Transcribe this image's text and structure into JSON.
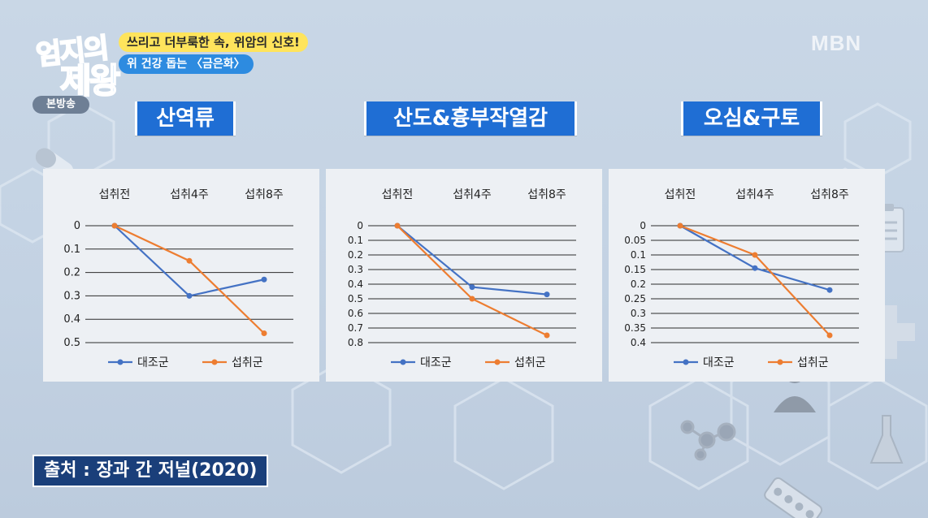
{
  "header": {
    "logo_line1": "엄지의",
    "logo_line2": "제왕",
    "live_badge": "본방송",
    "caption_top": "쓰리고 더부룩한 속, 위암의 신호!",
    "caption_bottom": "위 건강 돕는 〈금은화〉",
    "channel": "MBN"
  },
  "source": "출처 : 장과 간 저널(2020)",
  "colors": {
    "control": "#4472c4",
    "intake": "#ed7d31",
    "title_bg": "#1f6ed4"
  },
  "legend": {
    "control": "대조군",
    "intake": "섭취군"
  },
  "chart_data": [
    {
      "type": "line",
      "title": "산역류",
      "categories": [
        "섭취전",
        "섭취4주",
        "섭취8주"
      ],
      "y_inverted": true,
      "ylim": [
        0,
        0.5
      ],
      "yticks": [
        "0",
        "0.1",
        "0.2",
        "0.3",
        "0.4",
        "0.5"
      ],
      "series": [
        {
          "name": "대조군",
          "values": [
            0,
            0.3,
            0.23
          ]
        },
        {
          "name": "섭취군",
          "values": [
            0,
            0.15,
            0.46
          ]
        }
      ]
    },
    {
      "type": "line",
      "title": "산도&흉부작열감",
      "categories": [
        "섭취전",
        "섭취4주",
        "섭취8주"
      ],
      "y_inverted": true,
      "ylim": [
        0,
        0.8
      ],
      "yticks": [
        "0",
        "0.1",
        "0.2",
        "0.3",
        "0.4",
        "0.5",
        "0.6",
        "0.7",
        "0.8"
      ],
      "series": [
        {
          "name": "대조군",
          "values": [
            0,
            0.42,
            0.47
          ]
        },
        {
          "name": "섭취군",
          "values": [
            0,
            0.5,
            0.75
          ]
        }
      ]
    },
    {
      "type": "line",
      "title": "오심&구토",
      "categories": [
        "섭취전",
        "섭취4주",
        "섭취8주"
      ],
      "y_inverted": true,
      "ylim": [
        0,
        0.4
      ],
      "yticks": [
        "0",
        "0.05",
        "0.1",
        "0.15",
        "0.2",
        "0.25",
        "0.3",
        "0.35",
        "0.4"
      ],
      "series": [
        {
          "name": "대조군",
          "values": [
            0,
            0.145,
            0.22
          ]
        },
        {
          "name": "섭취군",
          "values": [
            0,
            0.1,
            0.375
          ]
        }
      ]
    }
  ]
}
